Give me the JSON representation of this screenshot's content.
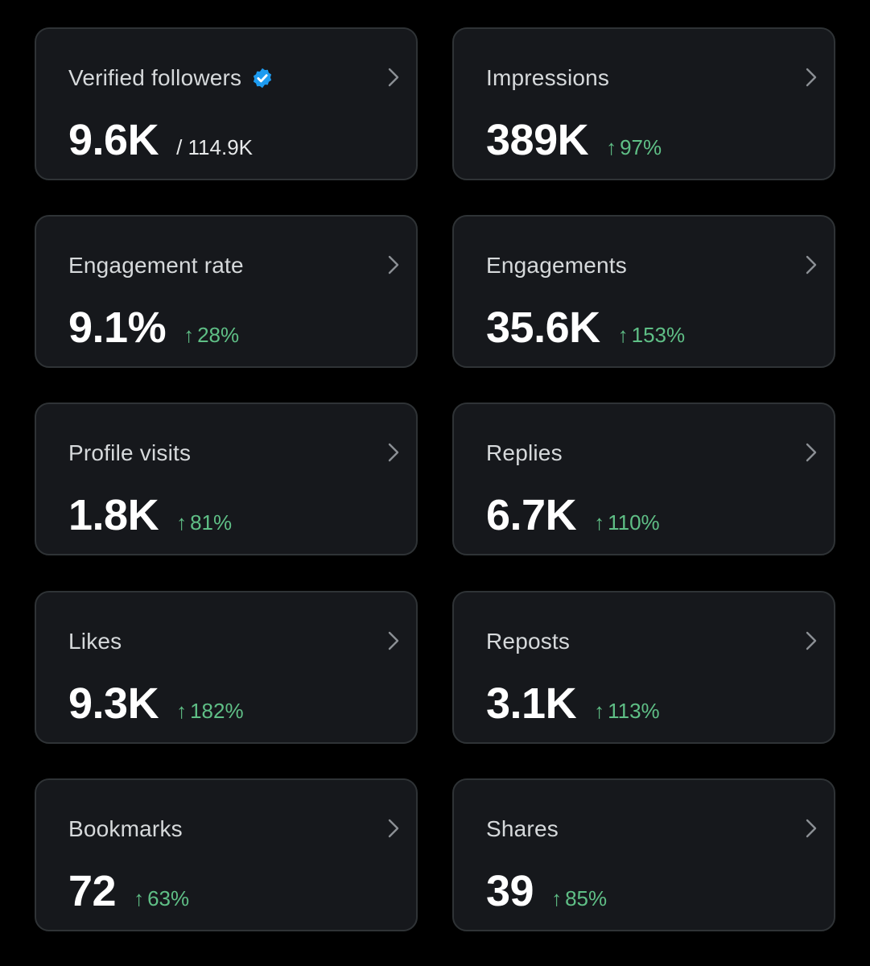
{
  "colors": {
    "background": "#000000",
    "card": "#16181c",
    "card_border": "#2f3336",
    "positive": "#5fbf86",
    "verified": "#1d9bf0"
  },
  "metrics": [
    {
      "label": "Verified followers",
      "value": "9.6K",
      "total": "/ 114.9K",
      "icon": "verified-badge-icon"
    },
    {
      "label": "Impressions",
      "value": "389K",
      "arrow": "↑",
      "change": "97%"
    },
    {
      "label": "Engagement rate",
      "value": "9.1%",
      "arrow": "↑",
      "change": "28%"
    },
    {
      "label": "Engagements",
      "value": "35.6K",
      "arrow": "↑",
      "change": "153%"
    },
    {
      "label": "Profile visits",
      "value": "1.8K",
      "arrow": "↑",
      "change": "81%"
    },
    {
      "label": "Replies",
      "value": "6.7K",
      "arrow": "↑",
      "change": "110%"
    },
    {
      "label": "Likes",
      "value": "9.3K",
      "arrow": "↑",
      "change": "182%"
    },
    {
      "label": "Reposts",
      "value": "3.1K",
      "arrow": "↑",
      "change": "113%"
    },
    {
      "label": "Bookmarks",
      "value": "72",
      "arrow": "↑",
      "change": "63%"
    },
    {
      "label": "Shares",
      "value": "39",
      "arrow": "↑",
      "change": "85%"
    }
  ]
}
